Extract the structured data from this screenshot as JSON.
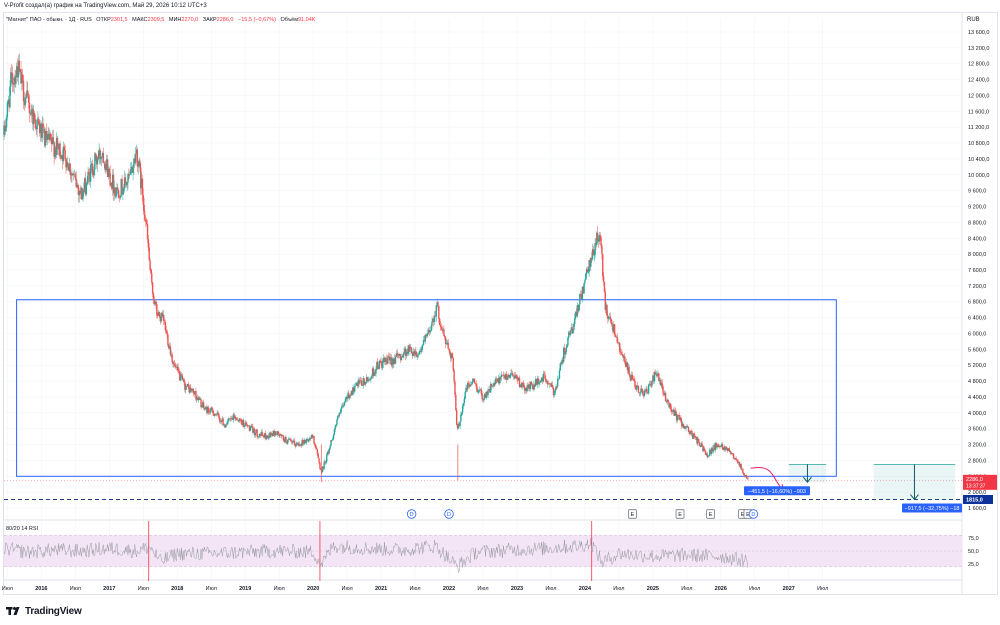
{
  "header": {
    "text": "V-Profit создал(а) график на TradingView.com, Май 29, 2026 10:12 UTC+3"
  },
  "legend": {
    "symbol": "\"Магнит\" ПАО - обыкн. · 1Д · RUS",
    "open_label": "ОТКР",
    "open_value": "2301,5",
    "high_label": "МАКС",
    "high_value": "2309,5",
    "low_label": "МИН",
    "low_value": "2270,0",
    "close_label": "ЗАКР",
    "close_value": "2286,0",
    "change": "−15,5 (−0,67%)",
    "volume_label": "Объём",
    "volume_value": "91,04K"
  },
  "rsi_legend": {
    "text": "80/20 14 RSI"
  },
  "currency": "RUB",
  "price_badges": {
    "current_price": "2286,0",
    "countdown": "13:37:37",
    "level_price": "1815,0"
  },
  "measurements": {
    "first": "−451,5 (−16,60%) −903",
    "second": "−917,5 (−32,75%) −18"
  },
  "event_markers": [
    "D",
    "D",
    "E",
    "E",
    "E",
    "E",
    "E",
    "D"
  ],
  "brand": {
    "name": "TradingView"
  },
  "colors": {
    "up": "#26a69a",
    "down": "#ef5350",
    "box": "#2962ff",
    "level": "#1e3a8a",
    "rsi": "#9598a1",
    "rsi_band": "#f3e5f5",
    "arrow": "#e91e63",
    "measure": "#2962ff",
    "level_badge": "#0c3299"
  },
  "chart_data": {
    "type": "line",
    "subtype": "candlestick",
    "y_tick_labels": [
      "1 600,0",
      "2 000,0",
      "2 400,0",
      "2 800,0",
      "3 200,0",
      "3 600,0",
      "4 000,0",
      "4 400,0",
      "4 800,0",
      "5 200,0",
      "5 600,0",
      "6 000,0",
      "6 400,0",
      "6 800,0",
      "7 200,0",
      "7 600,0",
      "8 000,0",
      "8 400,0",
      "8 800,0",
      "9 200,0",
      "9 600,0",
      "10 000,0",
      "10 400,0",
      "10 800,0",
      "11 200,0",
      "11 600,0",
      "12 000,0",
      "12 400,0",
      "12 800,0",
      "13 200,0",
      "13 600,0"
    ],
    "y_ticks": [
      1600,
      2000,
      2400,
      2800,
      3200,
      3600,
      4000,
      4400,
      4800,
      5200,
      5600,
      6000,
      6400,
      6800,
      7200,
      7600,
      8000,
      8400,
      8800,
      9200,
      9600,
      10000,
      10400,
      10800,
      11200,
      11600,
      12000,
      12400,
      12800,
      13200,
      13600
    ],
    "x_tick_labels": [
      "Июл",
      "2016",
      "Июл",
      "2017",
      "Июл",
      "2018",
      "Июл",
      "2019",
      "Июл",
      "2020",
      "Июл",
      "2021",
      "Июл",
      "2022",
      "Июл",
      "2023",
      "Июл",
      "2024",
      "Июл",
      "2025",
      "Июл",
      "2026",
      "Июл",
      "2027",
      "Июл"
    ],
    "x_ticks": [
      2015.5,
      2016.0,
      2016.5,
      2017.0,
      2017.5,
      2018.0,
      2018.5,
      2019.0,
      2019.5,
      2020.0,
      2020.5,
      2021.0,
      2021.5,
      2022.0,
      2022.5,
      2023.0,
      2023.5,
      2024.0,
      2024.5,
      2025.0,
      2025.5,
      2026.0,
      2026.5,
      2027.0,
      2027.5
    ],
    "price_anchors": {
      "x": [
        2015.45,
        2015.55,
        2015.65,
        2015.75,
        2015.9,
        2016.05,
        2016.2,
        2016.35,
        2016.5,
        2016.6,
        2016.75,
        2016.9,
        2017.0,
        2017.1,
        2017.2,
        2017.3,
        2017.4,
        2017.5,
        2017.55,
        2017.62,
        2017.7,
        2017.8,
        2017.95,
        2018.1,
        2018.25,
        2018.4,
        2018.55,
        2018.7,
        2018.85,
        2019.0,
        2019.15,
        2019.3,
        2019.45,
        2019.6,
        2019.75,
        2019.9,
        2020.0,
        2020.12,
        2020.22,
        2020.35,
        2020.5,
        2020.65,
        2020.8,
        2020.95,
        2021.1,
        2021.25,
        2021.4,
        2021.55,
        2021.7,
        2021.82,
        2021.88,
        2021.95,
        2022.05,
        2022.12,
        2022.18,
        2022.25,
        2022.35,
        2022.5,
        2022.65,
        2022.8,
        2022.95,
        2023.1,
        2023.25,
        2023.4,
        2023.55,
        2023.7,
        2023.85,
        2023.95,
        2024.05,
        2024.12,
        2024.17,
        2024.22,
        2024.3,
        2024.45,
        2024.6,
        2024.75,
        2024.9,
        2025.05,
        2025.2,
        2025.35,
        2025.5,
        2025.65,
        2025.8,
        2025.95,
        2026.1,
        2026.25,
        2026.35,
        2026.41
      ],
      "y": [
        11000,
        12300,
        12700,
        12000,
        11400,
        10900,
        10700,
        10500,
        9800,
        9500,
        10200,
        10600,
        10000,
        9600,
        9700,
        9900,
        10600,
        9400,
        8600,
        7200,
        6500,
        6300,
        5200,
        4700,
        4500,
        4100,
        4000,
        3700,
        3900,
        3700,
        3500,
        3400,
        3500,
        3300,
        3200,
        3300,
        3400,
        2500,
        3000,
        3800,
        4400,
        4700,
        4800,
        5200,
        5300,
        5400,
        5600,
        5500,
        6000,
        6700,
        6200,
        5800,
        5400,
        3500,
        4000,
        4600,
        4800,
        4400,
        4700,
        4900,
        5000,
        4600,
        4700,
        4900,
        4500,
        5600,
        6300,
        7000,
        7600,
        8000,
        8400,
        8500,
        6700,
        6000,
        5200,
        4600,
        4500,
        5000,
        4300,
        3900,
        3600,
        3300,
        2950,
        3200,
        3100,
        2800,
        2400,
        2286
      ]
    },
    "rsi_anchors": {
      "x": [
        2015.45,
        2015.8,
        2016.2,
        2016.6,
        2017.0,
        2017.4,
        2017.6,
        2017.75,
        2018.0,
        2018.5,
        2019.0,
        2019.5,
        2020.0,
        2020.12,
        2020.3,
        2020.8,
        2021.3,
        2021.8,
        2022.12,
        2022.4,
        2022.9,
        2023.4,
        2023.9,
        2024.1,
        2024.25,
        2024.5,
        2025.0,
        2025.5,
        2026.0,
        2026.41
      ],
      "y": [
        55,
        48,
        52,
        50,
        55,
        50,
        58,
        30,
        45,
        45,
        48,
        50,
        48,
        25,
        60,
        55,
        52,
        60,
        20,
        48,
        52,
        55,
        60,
        65,
        28,
        45,
        40,
        42,
        40,
        30
      ]
    },
    "rsi_ticks": [
      25,
      50,
      75
    ],
    "rsi_tick_labels": [
      "25,0",
      "50,0",
      "75,0"
    ],
    "rsi_band": [
      20,
      80
    ],
    "range_box": {
      "x0": 2015.4,
      "x1": 2027.7,
      "y0": 2400,
      "y1": 6850
    },
    "current_price": 2286,
    "level_price": 1815,
    "forecast_arrow": {
      "x0": 2026.41,
      "y0": 2400,
      "x1": 2026.8,
      "y1": 1900
    },
    "measure1": {
      "x0": 2027.0,
      "x1": 2027.55,
      "y_top": 2700,
      "y_bottom": 2250
    },
    "measure2": {
      "x0": 2028.25,
      "x1": 2029.45,
      "y_top": 2700,
      "y_bottom": 1815
    },
    "events": [
      {
        "label": "D",
        "x": 2021.45,
        "kind": "circle"
      },
      {
        "label": "D",
        "x": 2022.0,
        "kind": "circle"
      },
      {
        "label": "E",
        "x": 2024.7,
        "kind": "square"
      },
      {
        "label": "E",
        "x": 2025.4,
        "kind": "square"
      },
      {
        "label": "E",
        "x": 2025.85,
        "kind": "square"
      },
      {
        "label": "E",
        "x": 2026.32,
        "kind": "square"
      },
      {
        "label": "E",
        "x": 2026.4,
        "kind": "square"
      },
      {
        "label": "D",
        "x": 2026.48,
        "kind": "circle"
      }
    ]
  }
}
